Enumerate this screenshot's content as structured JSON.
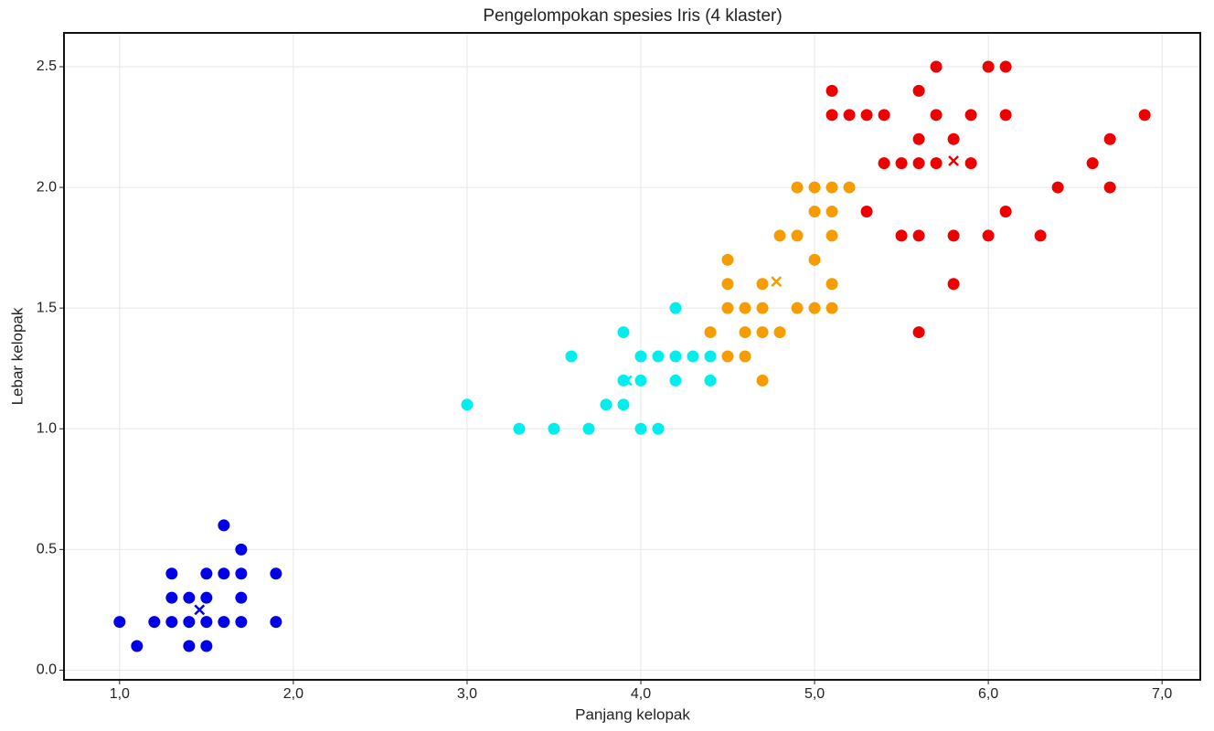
{
  "chart_data": {
    "type": "scatter",
    "title": "Pengelompokan spesies Iris (4 klaster)",
    "x_label": "Panjang kelopak",
    "y_label": "Lebar kelopak",
    "xlim": [
      0.68,
      7.22
    ],
    "ylim": [
      -0.04,
      2.64
    ],
    "grid": true,
    "xticks": [
      {
        "value": 1,
        "label": "1,0"
      },
      {
        "value": 2,
        "label": "2,0"
      },
      {
        "value": 3,
        "label": "3,0"
      },
      {
        "value": 4,
        "label": "4,0"
      },
      {
        "value": 5,
        "label": "5,0"
      },
      {
        "value": 6,
        "label": "6,0"
      },
      {
        "value": 7,
        "label": "7,0"
      }
    ],
    "yticks": [
      {
        "value": 0,
        "label": "0.0"
      },
      {
        "value": 0.5,
        "label": "0.5"
      },
      {
        "value": 1,
        "label": "1.0"
      },
      {
        "value": 1.5,
        "label": "1.5"
      },
      {
        "value": 2,
        "label": "2.0"
      },
      {
        "value": 2.5,
        "label": "2.5"
      }
    ],
    "series": [
      {
        "color": "#0000e8",
        "marker": "o",
        "x": [
          1.0,
          1.1,
          1.2,
          1.3,
          1.3,
          1.3,
          1.4,
          1.4,
          1.4,
          1.5,
          1.5,
          1.5,
          1.5,
          1.6,
          1.6,
          1.6,
          1.7,
          1.7,
          1.7,
          1.7,
          1.9,
          1.9
        ],
        "values": [
          0.2,
          0.1,
          0.2,
          0.4,
          0.3,
          0.2,
          0.3,
          0.2,
          0.1,
          0.4,
          0.3,
          0.2,
          0.1,
          0.6,
          0.4,
          0.2,
          0.5,
          0.4,
          0.3,
          0.2,
          0.4,
          0.2
        ]
      },
      {
        "color": "#00eeee",
        "marker": "o",
        "x": [
          3.0,
          3.3,
          3.5,
          3.6,
          3.7,
          3.8,
          3.9,
          3.9,
          3.9,
          4.0,
          4.0,
          4.0,
          4.1,
          4.1,
          4.2,
          4.2,
          4.2,
          4.3,
          4.4,
          4.4
        ],
        "values": [
          1.1,
          1.0,
          1.0,
          1.3,
          1.0,
          1.1,
          1.4,
          1.2,
          1.1,
          1.3,
          1.2,
          1.0,
          1.3,
          1.0,
          1.5,
          1.3,
          1.2,
          1.3,
          1.3,
          1.2
        ]
      },
      {
        "color": "#f59d00",
        "marker": "o",
        "x": [
          4.4,
          4.5,
          4.5,
          4.5,
          4.5,
          4.6,
          4.6,
          4.6,
          4.7,
          4.7,
          4.7,
          4.7,
          4.8,
          4.8,
          4.9,
          4.9,
          4.9,
          5.0,
          5.0,
          5.0,
          5.0,
          5.1,
          5.1,
          5.1,
          5.1,
          5.1,
          5.2
        ],
        "values": [
          1.4,
          1.7,
          1.6,
          1.5,
          1.3,
          1.5,
          1.4,
          1.3,
          1.6,
          1.5,
          1.4,
          1.2,
          1.8,
          1.4,
          2.0,
          1.8,
          1.5,
          2.0,
          1.9,
          1.7,
          1.5,
          2.0,
          1.9,
          1.8,
          1.6,
          1.5,
          2.0
        ]
      },
      {
        "color": "#ee0000",
        "marker": "o",
        "x": [
          5.1,
          5.1,
          5.2,
          5.3,
          5.3,
          5.4,
          5.4,
          5.5,
          5.5,
          5.6,
          5.6,
          5.6,
          5.6,
          5.6,
          5.7,
          5.7,
          5.7,
          5.8,
          5.8,
          5.8,
          5.9,
          5.9,
          6.0,
          6.0,
          6.1,
          6.1,
          6.1,
          6.3,
          6.4,
          6.6,
          6.7,
          6.7,
          6.9
        ],
        "values": [
          2.4,
          2.3,
          2.3,
          2.3,
          1.9,
          2.3,
          2.1,
          2.1,
          1.8,
          2.4,
          2.2,
          2.1,
          1.8,
          1.4,
          2.5,
          2.3,
          2.1,
          2.2,
          1.8,
          1.6,
          2.3,
          2.1,
          2.5,
          1.8,
          2.5,
          2.3,
          1.9,
          1.8,
          2.0,
          2.1,
          2.2,
          2.0,
          2.3
        ]
      },
      {
        "color": "#0000e8",
        "marker": "x",
        "x": [
          1.46
        ],
        "values": [
          0.25
        ]
      },
      {
        "color": "#00eeee",
        "marker": "x",
        "x": [
          3.92
        ],
        "values": [
          1.2
        ]
      },
      {
        "color": "#f59d00",
        "marker": "x",
        "x": [
          4.78
        ],
        "values": [
          1.61
        ]
      },
      {
        "color": "#ee0000",
        "marker": "x",
        "x": [
          5.8
        ],
        "values": [
          2.11
        ]
      }
    ]
  }
}
